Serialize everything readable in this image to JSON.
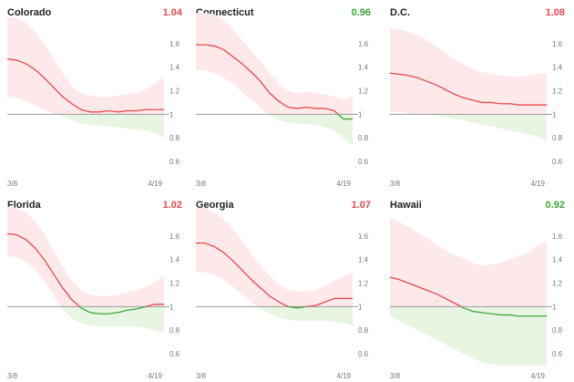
{
  "colors": {
    "above": "#e8474c",
    "below": "#3aa83a",
    "band_above": "#fde9e9",
    "band_below": "#e8f5e3",
    "baseline": "#9a9a9a"
  },
  "chart_data": [
    {
      "type": "area",
      "title": "Colorado",
      "latest": "1.04",
      "latest_status": "above",
      "x_labels": [
        "3/8",
        "4/19"
      ],
      "y_ticks": [
        "1.6",
        "1.4",
        "1.2",
        "1",
        "0.8",
        "0.6"
      ],
      "ylim": [
        0.5,
        1.8
      ],
      "median": [
        1.47,
        1.46,
        1.43,
        1.38,
        1.31,
        1.23,
        1.15,
        1.09,
        1.04,
        1.02,
        1.02,
        1.03,
        1.02,
        1.03,
        1.03,
        1.04,
        1.04,
        1.04
      ],
      "upper": [
        1.82,
        1.82,
        1.78,
        1.7,
        1.6,
        1.48,
        1.35,
        1.24,
        1.18,
        1.16,
        1.15,
        1.15,
        1.16,
        1.17,
        1.18,
        1.21,
        1.26,
        1.32
      ],
      "lower": [
        1.15,
        1.14,
        1.11,
        1.08,
        1.04,
        1.01,
        0.98,
        0.95,
        0.92,
        0.91,
        0.9,
        0.9,
        0.89,
        0.88,
        0.87,
        0.86,
        0.84,
        0.8
      ]
    },
    {
      "type": "area",
      "title": "Connecticut",
      "latest": "0.96",
      "latest_status": "below",
      "x_labels": [
        "3/8",
        "4/19"
      ],
      "y_ticks": [
        "1.6",
        "1.4",
        "1.2",
        "1",
        "0.8",
        "0.6"
      ],
      "ylim": [
        0.5,
        1.8
      ],
      "median": [
        1.59,
        1.59,
        1.58,
        1.55,
        1.49,
        1.43,
        1.36,
        1.28,
        1.18,
        1.11,
        1.06,
        1.05,
        1.06,
        1.05,
        1.05,
        1.03,
        0.96,
        0.96
      ],
      "upper": [
        1.86,
        1.86,
        1.85,
        1.8,
        1.73,
        1.63,
        1.54,
        1.45,
        1.35,
        1.26,
        1.2,
        1.18,
        1.19,
        1.18,
        1.17,
        1.15,
        1.13,
        1.15
      ],
      "lower": [
        1.38,
        1.37,
        1.35,
        1.31,
        1.26,
        1.19,
        1.12,
        1.06,
        0.99,
        0.95,
        0.93,
        0.92,
        0.92,
        0.91,
        0.89,
        0.86,
        0.8,
        0.74
      ]
    },
    {
      "type": "area",
      "title": "D.C.",
      "latest": "1.08",
      "latest_status": "above",
      "x_labels": [
        "3/8",
        "4/19"
      ],
      "y_ticks": [
        "1.6",
        "1.4",
        "1.2",
        "1",
        "0.8",
        "0.6"
      ],
      "ylim": [
        0.5,
        1.8
      ],
      "median": [
        1.35,
        1.34,
        1.33,
        1.31,
        1.28,
        1.25,
        1.21,
        1.17,
        1.14,
        1.12,
        1.1,
        1.1,
        1.09,
        1.09,
        1.08,
        1.08,
        1.08,
        1.08
      ],
      "upper": [
        1.73,
        1.72,
        1.7,
        1.67,
        1.63,
        1.58,
        1.52,
        1.47,
        1.42,
        1.38,
        1.36,
        1.34,
        1.33,
        1.32,
        1.32,
        1.33,
        1.34,
        1.35
      ],
      "lower": [
        1.02,
        1.02,
        1.01,
        1.0,
        1.0,
        0.99,
        0.98,
        0.96,
        0.95,
        0.93,
        0.91,
        0.9,
        0.88,
        0.86,
        0.85,
        0.83,
        0.81,
        0.78
      ]
    },
    {
      "type": "area",
      "title": "Florida",
      "latest": "1.02",
      "latest_status": "above",
      "x_labels": [
        "3/8",
        "4/19"
      ],
      "y_ticks": [
        "1.6",
        "1.4",
        "1.2",
        "1",
        "0.8",
        "0.6"
      ],
      "ylim": [
        0.5,
        1.8
      ],
      "median": [
        1.62,
        1.61,
        1.57,
        1.5,
        1.4,
        1.28,
        1.16,
        1.06,
        0.99,
        0.95,
        0.94,
        0.94,
        0.95,
        0.97,
        0.98,
        1.0,
        1.02,
        1.02
      ],
      "upper": [
        1.85,
        1.84,
        1.8,
        1.73,
        1.62,
        1.48,
        1.34,
        1.22,
        1.14,
        1.1,
        1.09,
        1.09,
        1.1,
        1.12,
        1.14,
        1.17,
        1.21,
        1.26
      ],
      "lower": [
        1.43,
        1.42,
        1.38,
        1.32,
        1.22,
        1.1,
        0.98,
        0.9,
        0.86,
        0.84,
        0.83,
        0.83,
        0.83,
        0.83,
        0.83,
        0.82,
        0.8,
        0.78
      ]
    },
    {
      "type": "area",
      "title": "Georgia",
      "latest": "1.07",
      "latest_status": "above",
      "x_labels": [
        "3/8",
        "4/19"
      ],
      "y_ticks": [
        "1.6",
        "1.4",
        "1.2",
        "1",
        "0.8",
        "0.6"
      ],
      "ylim": [
        0.5,
        1.8
      ],
      "median": [
        1.54,
        1.54,
        1.51,
        1.46,
        1.39,
        1.31,
        1.23,
        1.16,
        1.09,
        1.04,
        1.0,
        0.99,
        1.0,
        1.01,
        1.04,
        1.07,
        1.07,
        1.07
      ],
      "upper": [
        1.84,
        1.84,
        1.8,
        1.74,
        1.66,
        1.56,
        1.45,
        1.35,
        1.26,
        1.19,
        1.14,
        1.13,
        1.13,
        1.14,
        1.17,
        1.22,
        1.26,
        1.29
      ],
      "lower": [
        1.3,
        1.29,
        1.27,
        1.23,
        1.17,
        1.11,
        1.04,
        0.98,
        0.94,
        0.91,
        0.89,
        0.88,
        0.88,
        0.88,
        0.88,
        0.87,
        0.86,
        0.84
      ]
    },
    {
      "type": "area",
      "title": "Hawaii",
      "latest": "0.92",
      "latest_status": "below",
      "x_labels": [
        "3/8",
        "4/19"
      ],
      "y_ticks": [
        "1.6",
        "1.4",
        "1.2",
        "1",
        "0.8",
        "0.6"
      ],
      "ylim": [
        0.5,
        1.8
      ],
      "median": [
        1.25,
        1.23,
        1.2,
        1.17,
        1.14,
        1.11,
        1.07,
        1.03,
        0.99,
        0.96,
        0.95,
        0.94,
        0.93,
        0.93,
        0.92,
        0.92,
        0.92,
        0.92
      ],
      "upper": [
        1.75,
        1.72,
        1.68,
        1.63,
        1.58,
        1.53,
        1.48,
        1.44,
        1.41,
        1.37,
        1.35,
        1.36,
        1.37,
        1.4,
        1.43,
        1.46,
        1.52,
        1.56
      ],
      "lower": [
        0.92,
        0.88,
        0.84,
        0.8,
        0.76,
        0.72,
        0.68,
        0.64,
        0.6,
        0.56,
        0.53,
        0.51,
        0.5,
        0.5,
        0.5,
        0.5,
        0.5,
        0.5
      ]
    }
  ]
}
